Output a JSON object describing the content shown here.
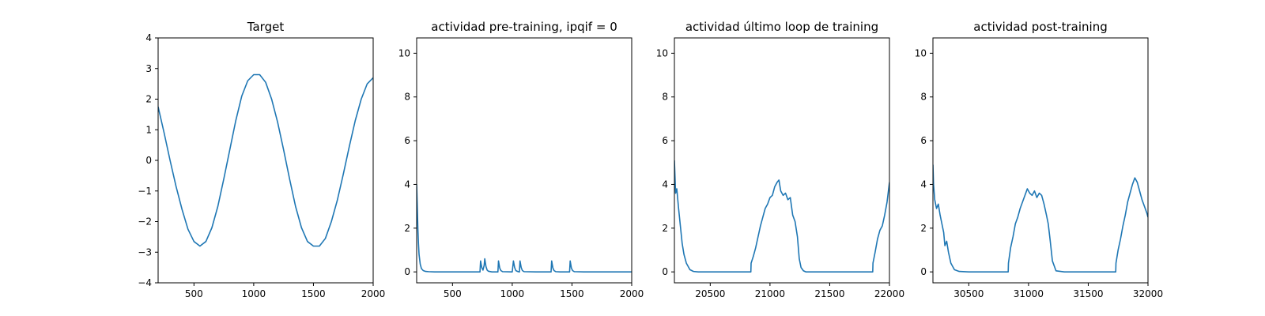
{
  "chart_data": [
    {
      "type": "line",
      "title": "Target",
      "xlabel": "",
      "ylabel": "",
      "xlim": [
        200,
        2000
      ],
      "ylim": [
        -4,
        4
      ],
      "xticks": [
        500,
        1000,
        1500,
        2000
      ],
      "yticks": [
        -4,
        -3,
        -2,
        -1,
        0,
        1,
        2,
        3,
        4
      ],
      "color": "#1f77b4",
      "series": [
        {
          "x": [
            200,
            250,
            300,
            350,
            400,
            450,
            500,
            550,
            600,
            650,
            700,
            750,
            800,
            850,
            900,
            950,
            1000,
            1050,
            1100,
            1150,
            1200,
            1250,
            1300,
            1350,
            1400,
            1450,
            1500,
            1550,
            1600,
            1650,
            1700,
            1750,
            1800,
            1850,
            1900,
            1950,
            2000
          ],
          "y": [
            1.75,
            0.9,
            0.0,
            -0.85,
            -1.6,
            -2.25,
            -2.65,
            -2.8,
            -2.65,
            -2.2,
            -1.5,
            -0.6,
            0.35,
            1.3,
            2.1,
            2.6,
            2.8,
            2.8,
            2.55,
            2.0,
            1.25,
            0.35,
            -0.6,
            -1.5,
            -2.2,
            -2.65,
            -2.8,
            -2.8,
            -2.55,
            -2.0,
            -1.3,
            -0.45,
            0.45,
            1.3,
            2.0,
            2.5,
            2.7
          ]
        }
      ]
    },
    {
      "type": "line",
      "title": "actividad pre-training, ipqif = 0",
      "xlabel": "",
      "ylabel": "",
      "xlim": [
        200,
        2000
      ],
      "ylim": [
        -0.5,
        10.7
      ],
      "xticks": [
        500,
        1000,
        1500,
        2000
      ],
      "yticks": [
        0,
        2,
        4,
        6,
        8,
        10
      ],
      "color": "#1f77b4",
      "series": [
        {
          "x": [
            200,
            205,
            210,
            215,
            220,
            230,
            240,
            255,
            275,
            300,
            350,
            400,
            500,
            600,
            700,
            730,
            735,
            745,
            755,
            765,
            770,
            780,
            790,
            800,
            830,
            880,
            885,
            895,
            905,
            920,
            1000,
            1010,
            1020,
            1030,
            1045,
            1060,
            1065,
            1075,
            1085,
            1100,
            1200,
            1325,
            1330,
            1340,
            1350,
            1365,
            1400,
            1480,
            1485,
            1495,
            1505,
            1520,
            1600,
            1800,
            2000
          ],
          "y": [
            4.0,
            3.0,
            2.0,
            1.3,
            0.8,
            0.35,
            0.15,
            0.06,
            0.02,
            0.01,
            0.0,
            0.0,
            0.0,
            0.0,
            0.0,
            0.0,
            0.5,
            0.2,
            0.08,
            0.3,
            0.6,
            0.25,
            0.08,
            0.03,
            0.0,
            0.0,
            0.5,
            0.18,
            0.06,
            0.01,
            0.0,
            0.5,
            0.2,
            0.06,
            0.02,
            0.0,
            0.5,
            0.2,
            0.06,
            0.01,
            0.0,
            0.0,
            0.5,
            0.18,
            0.06,
            0.01,
            0.0,
            0.0,
            0.5,
            0.18,
            0.06,
            0.01,
            0.0,
            0.0,
            0.0
          ]
        }
      ]
    },
    {
      "type": "line",
      "title": "actividad último loop de training",
      "xlabel": "",
      "ylabel": "",
      "xlim": [
        20200,
        22000
      ],
      "ylim": [
        -0.5,
        10.7
      ],
      "xticks": [
        20500,
        21000,
        21500,
        22000
      ],
      "yticks": [
        0,
        2,
        4,
        6,
        8,
        10
      ],
      "color": "#1f77b4",
      "series": [
        {
          "x": [
            20200,
            20210,
            20220,
            20235,
            20250,
            20265,
            20280,
            20300,
            20330,
            20360,
            20400,
            20500,
            20600,
            20700,
            20800,
            20840,
            20842,
            20860,
            20880,
            20900,
            20920,
            20940,
            20960,
            20980,
            21000,
            21020,
            21040,
            21060,
            21075,
            21090,
            21110,
            21130,
            21150,
            21170,
            21190,
            21210,
            21230,
            21245,
            21260,
            21280,
            21300,
            21330,
            21400,
            21500,
            21600,
            21700,
            21800,
            21860,
            21862,
            21880,
            21900,
            21920,
            21940,
            21960,
            21980,
            22000
          ],
          "y": [
            5.1,
            3.6,
            3.8,
            2.9,
            2.1,
            1.3,
            0.8,
            0.4,
            0.1,
            0.02,
            0.0,
            0.0,
            0.0,
            0.0,
            0.0,
            0.0,
            0.4,
            0.7,
            1.1,
            1.6,
            2.1,
            2.5,
            2.9,
            3.1,
            3.4,
            3.5,
            3.9,
            4.1,
            4.2,
            3.7,
            3.5,
            3.6,
            3.3,
            3.4,
            2.6,
            2.3,
            1.6,
            0.6,
            0.2,
            0.05,
            0.0,
            0.0,
            0.0,
            0.0,
            0.0,
            0.0,
            0.0,
            0.0,
            0.4,
            0.9,
            1.5,
            1.9,
            2.1,
            2.6,
            3.2,
            4.1
          ]
        }
      ]
    },
    {
      "type": "line",
      "title": "actividad post-training",
      "xlabel": "",
      "ylabel": "",
      "xlim": [
        30200,
        32000
      ],
      "ylim": [
        -0.5,
        10.7
      ],
      "xticks": [
        30500,
        31000,
        31500,
        32000
      ],
      "yticks": [
        0,
        2,
        4,
        6,
        8,
        10
      ],
      "color": "#1f77b4",
      "series": [
        {
          "x": [
            30200,
            30205,
            30215,
            30230,
            30245,
            30260,
            30275,
            30290,
            30300,
            30315,
            30330,
            30350,
            30380,
            30420,
            30500,
            30600,
            30700,
            30800,
            30830,
            30832,
            30850,
            30870,
            30890,
            30910,
            30930,
            30950,
            30970,
            30990,
            31010,
            31030,
            31050,
            31070,
            31090,
            31110,
            31130,
            31150,
            31165,
            31180,
            31200,
            31230,
            31300,
            31400,
            31500,
            31600,
            31700,
            31730,
            31732,
            31750,
            31770,
            31790,
            31810,
            31830,
            31850,
            31870,
            31890,
            31910,
            31930,
            31950,
            31970,
            31990,
            32000
          ],
          "y": [
            4.9,
            4.0,
            3.3,
            2.9,
            3.1,
            2.6,
            2.2,
            1.8,
            1.2,
            1.4,
            0.9,
            0.4,
            0.1,
            0.02,
            0.0,
            0.0,
            0.0,
            0.0,
            0.0,
            0.4,
            1.1,
            1.6,
            2.2,
            2.5,
            2.9,
            3.2,
            3.5,
            3.8,
            3.6,
            3.5,
            3.7,
            3.4,
            3.6,
            3.5,
            3.1,
            2.6,
            2.2,
            1.5,
            0.5,
            0.05,
            0.0,
            0.0,
            0.0,
            0.0,
            0.0,
            0.0,
            0.4,
            1.0,
            1.5,
            2.1,
            2.6,
            3.2,
            3.6,
            4.0,
            4.3,
            4.1,
            3.7,
            3.3,
            3.0,
            2.7,
            2.5
          ]
        }
      ]
    }
  ]
}
